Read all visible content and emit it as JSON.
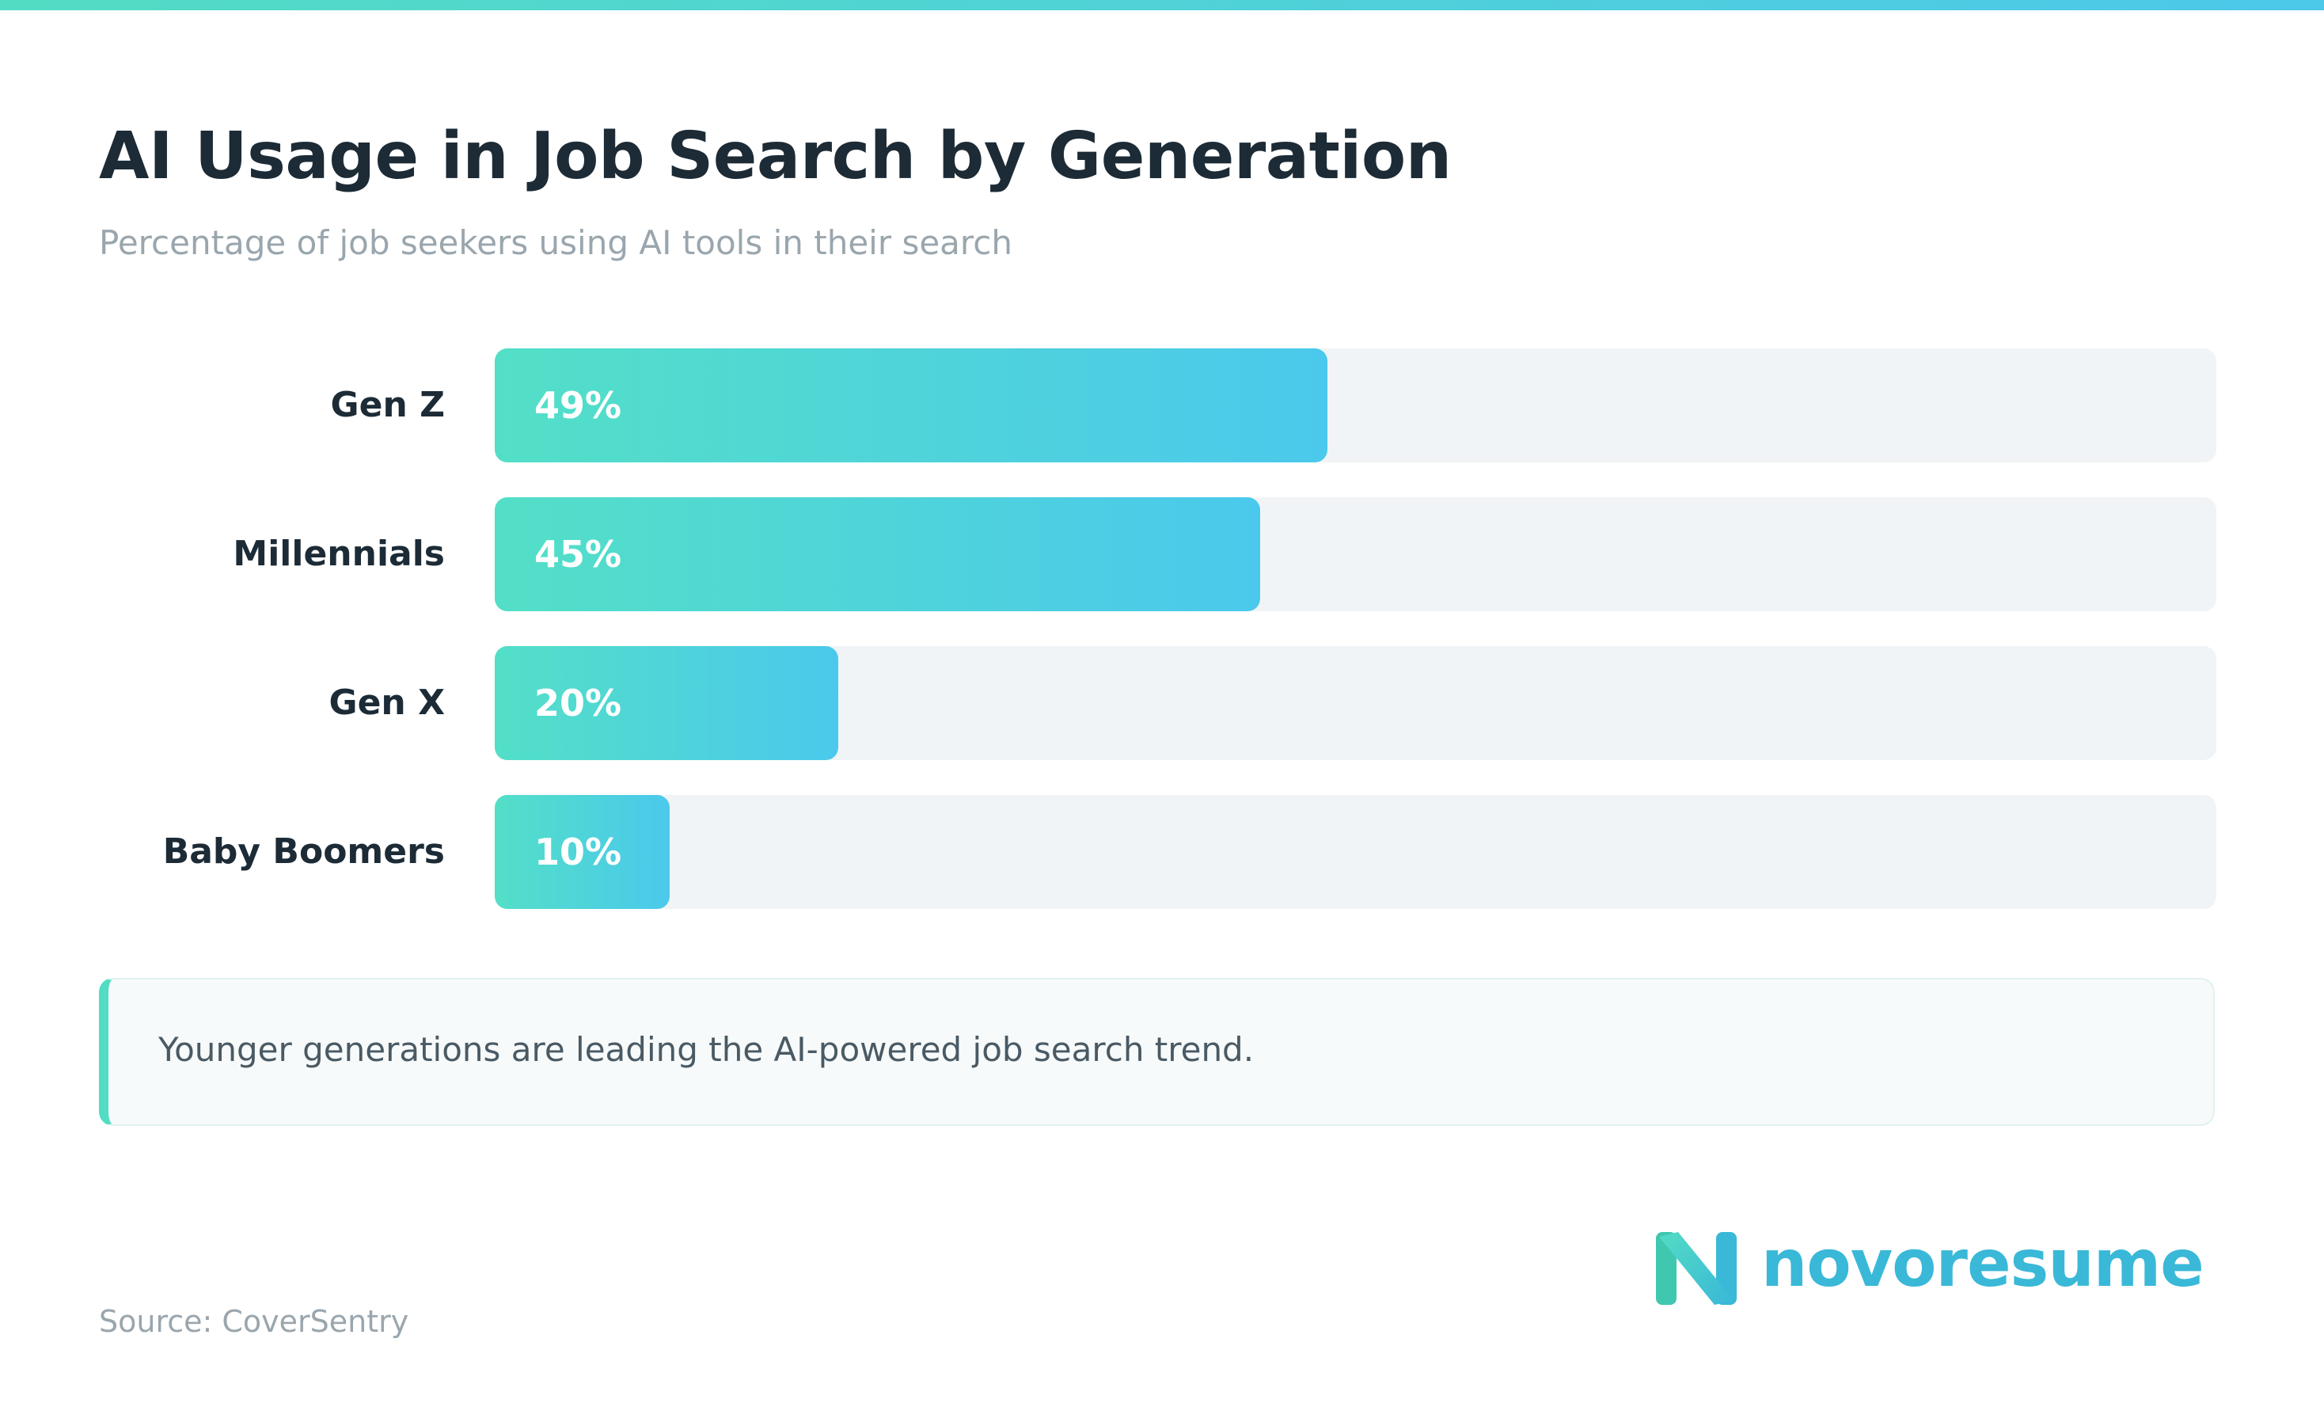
{
  "header": {
    "title": "AI Usage in Job Search by Generation",
    "subtitle": "Percentage of job seekers using AI tools in their search"
  },
  "chart_data": {
    "type": "bar",
    "orientation": "horizontal",
    "title": "AI Usage in Job Search by Generation",
    "subtitle": "Percentage of job seekers using AI tools in their search",
    "categories": [
      "Gen Z",
      "Millennials",
      "Gen X",
      "Baby Boomers"
    ],
    "values": [
      49,
      45,
      20,
      10
    ],
    "value_labels": [
      "49%",
      "45%",
      "20%",
      "10%"
    ],
    "unit": "%",
    "xlim": [
      0,
      100
    ],
    "grid": false,
    "bar_color_start": "#53dfc7",
    "bar_color_end": "#4bc9ec",
    "track_color": "#f1f4f6"
  },
  "insight": {
    "text": "Younger generations are leading the AI-powered job search trend."
  },
  "footer": {
    "source": "Source: CoverSentry"
  },
  "brand": {
    "name": "novoresume",
    "logo_icon": "n-logo-icon",
    "color": "#3ab8d8",
    "accent": "#53dcc4"
  }
}
